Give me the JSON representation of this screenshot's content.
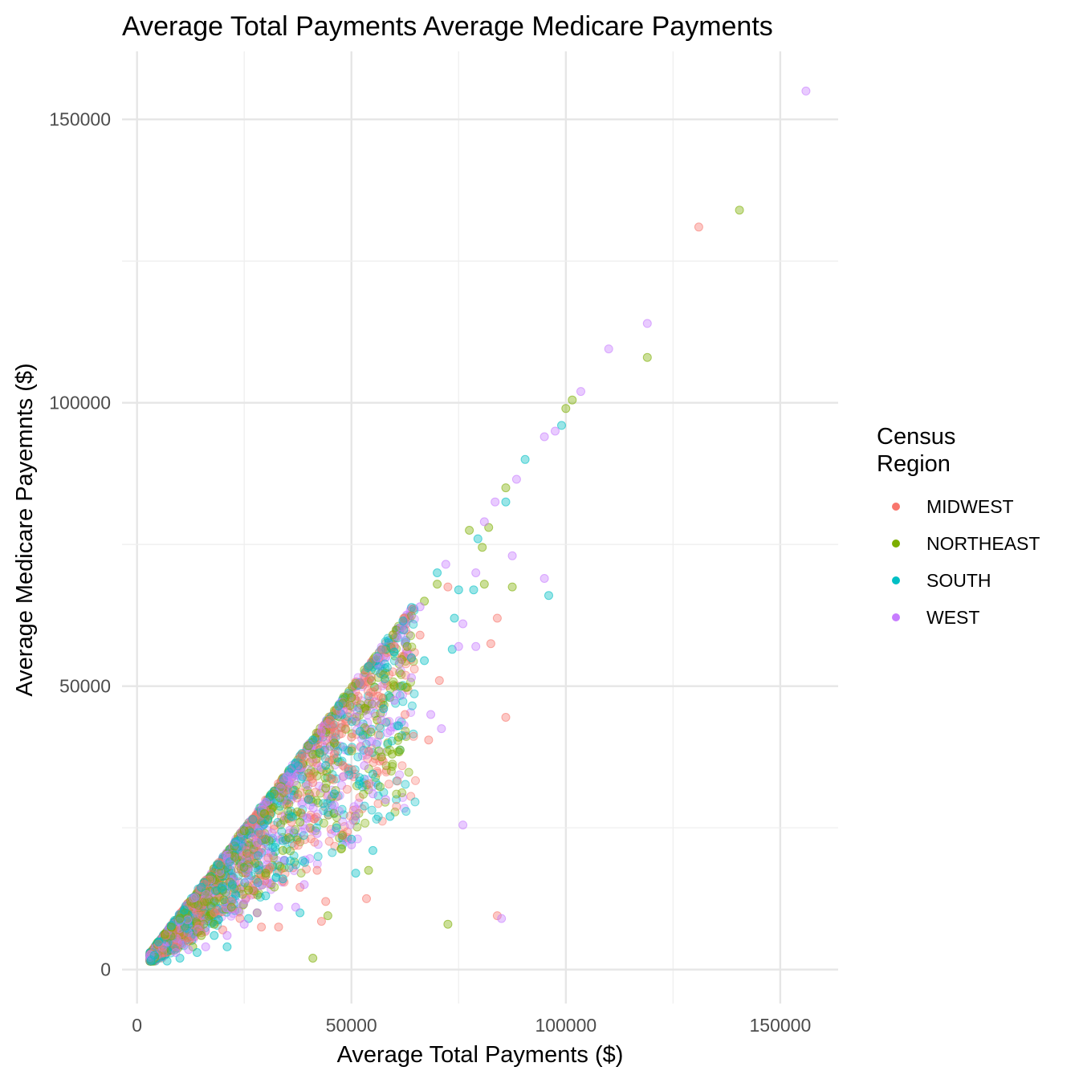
{
  "chart_data": {
    "type": "scatter",
    "title": "Average Total Payments Average Medicare Payments",
    "xlabel": "Average Total Payments ($)",
    "ylabel": "Average Medicare Payemnts ($)",
    "xlim": [
      -3500,
      163500
    ],
    "ylim": [
      -6000,
      162000
    ],
    "x_ticks": [
      0,
      50000,
      100000,
      150000
    ],
    "y_ticks": [
      0,
      50000,
      100000,
      150000
    ],
    "x_tick_labels": [
      "0",
      "50000",
      "100000",
      "150000"
    ],
    "y_tick_labels": [
      "0",
      "50000",
      "100000",
      "150000"
    ],
    "grid": true,
    "legend": {
      "title_lines": [
        "Census",
        "Region"
      ],
      "position": "right"
    },
    "series": [
      {
        "name": "MIDWEST",
        "color": "#F8766D",
        "points": [
          [
            131000,
            131000
          ],
          [
            86000,
            44500
          ],
          [
            84000,
            62000
          ],
          [
            82500,
            57500
          ],
          [
            70500,
            51000
          ],
          [
            68000,
            40500
          ],
          [
            62500,
            45000
          ],
          [
            56000,
            35000
          ],
          [
            54000,
            38500
          ],
          [
            53500,
            12500
          ],
          [
            44000,
            12000
          ],
          [
            43000,
            8500
          ],
          [
            42000,
            17500
          ],
          [
            38000,
            14500
          ],
          [
            33000,
            7500
          ],
          [
            29000,
            7500
          ],
          [
            41000,
            33000
          ],
          [
            46000,
            38000
          ],
          [
            50000,
            41000
          ],
          [
            84000,
            9500
          ],
          [
            72500,
            67500
          ],
          [
            60000,
            57000
          ],
          [
            57000,
            48000
          ],
          [
            48000,
            36000
          ],
          [
            40000,
            30000
          ],
          [
            36000,
            26000
          ],
          [
            31000,
            18000
          ],
          [
            27000,
            14000
          ],
          [
            24000,
            9000
          ],
          [
            22000,
            12000
          ],
          [
            20000,
            7000
          ],
          [
            18000,
            10000
          ],
          [
            15000,
            6500
          ],
          [
            12000,
            5000
          ],
          [
            9000,
            4000
          ],
          [
            6000,
            3000
          ],
          [
            5000,
            4500
          ],
          [
            66000,
            59000
          ],
          [
            52000,
            50500
          ],
          [
            45000,
            44000
          ]
        ]
      },
      {
        "name": "NORTHEAST",
        "color": "#7CAE00",
        "points": [
          [
            140500,
            134000
          ],
          [
            119000,
            108000
          ],
          [
            101500,
            100500
          ],
          [
            100000,
            99000
          ],
          [
            86000,
            85000
          ],
          [
            82000,
            78000
          ],
          [
            80500,
            74500
          ],
          [
            81000,
            68000
          ],
          [
            87500,
            67500
          ],
          [
            77500,
            77500
          ],
          [
            72500,
            8000
          ],
          [
            54000,
            17500
          ],
          [
            44500,
            9500
          ],
          [
            41000,
            2000
          ],
          [
            61000,
            41000
          ],
          [
            57000,
            37500
          ],
          [
            59500,
            38000
          ],
          [
            60000,
            50000
          ],
          [
            56000,
            44000
          ],
          [
            50000,
            48000
          ],
          [
            46000,
            40000
          ],
          [
            44000,
            32000
          ],
          [
            38000,
            26000
          ],
          [
            34000,
            21000
          ],
          [
            30000,
            17000
          ],
          [
            28000,
            10000
          ],
          [
            26000,
            14000
          ],
          [
            22000,
            11000
          ],
          [
            18000,
            8000
          ],
          [
            15000,
            6000
          ],
          [
            13000,
            4000
          ],
          [
            10000,
            9000
          ],
          [
            8000,
            7500
          ],
          [
            67000,
            65000
          ],
          [
            70000,
            68000
          ],
          [
            63000,
            57000
          ],
          [
            48000,
            47000
          ],
          [
            40000,
            39500
          ],
          [
            32000,
            31000
          ],
          [
            25000,
            24500
          ]
        ]
      },
      {
        "name": "SOUTH",
        "color": "#00BFC4",
        "points": [
          [
            99000,
            96000
          ],
          [
            90500,
            90000
          ],
          [
            86000,
            82500
          ],
          [
            79500,
            76000
          ],
          [
            75000,
            67000
          ],
          [
            74000,
            62000
          ],
          [
            73500,
            56500
          ],
          [
            78500,
            67000
          ],
          [
            96000,
            66000
          ],
          [
            67000,
            54500
          ],
          [
            64000,
            55000
          ],
          [
            59000,
            27000
          ],
          [
            55000,
            21000
          ],
          [
            51000,
            17000
          ],
          [
            50000,
            23000
          ],
          [
            46000,
            31000
          ],
          [
            46500,
            25000
          ],
          [
            55000,
            34500
          ],
          [
            57500,
            46000
          ],
          [
            61000,
            43000
          ],
          [
            60000,
            56000
          ],
          [
            52000,
            42000
          ],
          [
            44000,
            36000
          ],
          [
            40000,
            30000
          ],
          [
            36000,
            27000
          ],
          [
            38000,
            10000
          ],
          [
            34000,
            16000
          ],
          [
            30000,
            13000
          ],
          [
            26000,
            9000
          ],
          [
            21000,
            4000
          ],
          [
            18000,
            6000
          ],
          [
            14000,
            3000
          ],
          [
            10000,
            2000
          ],
          [
            7000,
            1500
          ],
          [
            4000,
            2500
          ],
          [
            70000,
            70000
          ],
          [
            62000,
            61500
          ],
          [
            54000,
            53500
          ],
          [
            47000,
            46500
          ],
          [
            41000,
            40500
          ],
          [
            36000,
            35500
          ],
          [
            31000,
            30500
          ],
          [
            27000,
            26500
          ],
          [
            23000,
            22500
          ],
          [
            19000,
            18500
          ],
          [
            15000,
            14500
          ],
          [
            11000,
            10500
          ],
          [
            8000,
            7800
          ],
          [
            5000,
            4900
          ]
        ]
      },
      {
        "name": "WEST",
        "color": "#C77CFF",
        "points": [
          [
            156000,
            155000
          ],
          [
            119000,
            114000
          ],
          [
            110000,
            109500
          ],
          [
            103500,
            102000
          ],
          [
            97500,
            95000
          ],
          [
            95000,
            94000
          ],
          [
            88500,
            86500
          ],
          [
            87500,
            73000
          ],
          [
            95000,
            69000
          ],
          [
            83500,
            82500
          ],
          [
            81000,
            79000
          ],
          [
            79000,
            70000
          ],
          [
            76000,
            61000
          ],
          [
            75000,
            57000
          ],
          [
            79000,
            57000
          ],
          [
            76000,
            25500
          ],
          [
            85000,
            9000
          ],
          [
            68500,
            45000
          ],
          [
            71000,
            42500
          ],
          [
            64000,
            51500
          ],
          [
            60000,
            47500
          ],
          [
            57000,
            44000
          ],
          [
            55000,
            31000
          ],
          [
            58000,
            30000
          ],
          [
            53000,
            36000
          ],
          [
            51000,
            27000
          ],
          [
            50000,
            22000
          ],
          [
            48000,
            34000
          ],
          [
            46000,
            29000
          ],
          [
            42000,
            24000
          ],
          [
            39000,
            15000
          ],
          [
            37000,
            11000
          ],
          [
            33000,
            11000
          ],
          [
            28000,
            10000
          ],
          [
            25000,
            8000
          ],
          [
            21000,
            6000
          ],
          [
            16000,
            4000
          ],
          [
            12000,
            3500
          ],
          [
            9000,
            3000
          ],
          [
            66000,
            64000
          ],
          [
            72000,
            71500
          ],
          [
            56000,
            55000
          ],
          [
            43000,
            42000
          ],
          [
            35000,
            34000
          ],
          [
            30000,
            29500
          ]
        ]
      }
    ],
    "band": {
      "description_only": false,
      "series_mix": [
        "MIDWEST",
        "NORTHEAST",
        "SOUTH",
        "WEST"
      ]
    }
  }
}
